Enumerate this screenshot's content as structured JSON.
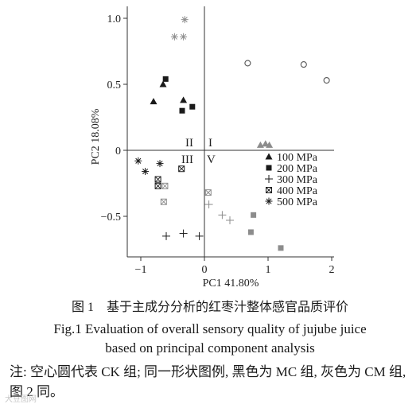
{
  "chart_data": {
    "type": "scatter",
    "xlabel": "PC1 41.80%",
    "ylabel": "PC2 18.08%",
    "xlim": [
      -1.2,
      2.05
    ],
    "ylim": [
      -0.82,
      1.06
    ],
    "xticks": [
      -1,
      0,
      1,
      2
    ],
    "yticks": [
      -0.5,
      0,
      0.5,
      1.0
    ],
    "ytick_labels": [
      "-0.5",
      "0",
      "0.5",
      "1.0"
    ],
    "grid": false,
    "reference_lines": {
      "x": 0,
      "y": 0
    },
    "quadrant_labels": [
      {
        "text": "II",
        "position": "upper-left"
      },
      {
        "text": "I",
        "position": "upper-right"
      },
      {
        "text": "III",
        "position": "lower-left"
      },
      {
        "text": "V",
        "position": "lower-right"
      }
    ],
    "colors": {
      "MC": "#1a1a1a",
      "CM": "#8c8c8c",
      "CK": "#555555"
    },
    "legend": {
      "placement": "right-middle",
      "entries": [
        {
          "label": "100 MPa",
          "marker": "triangle"
        },
        {
          "label": "200 MPa",
          "marker": "square"
        },
        {
          "label": "300 MPa",
          "marker": "plus"
        },
        {
          "label": "400 MPa",
          "marker": "boxed-x"
        },
        {
          "label": "500 MPa",
          "marker": "asterisk"
        }
      ]
    },
    "series": [
      {
        "marker": "circle-open",
        "group": "CK",
        "points": [
          [
            0.68,
            0.66
          ],
          [
            1.56,
            0.65
          ],
          [
            1.92,
            0.53
          ]
        ]
      },
      {
        "marker": "triangle",
        "group": "MC",
        "points": [
          [
            -0.8,
            0.37
          ],
          [
            -0.65,
            0.5
          ],
          [
            -0.33,
            0.38
          ]
        ]
      },
      {
        "marker": "square",
        "group": "MC",
        "points": [
          [
            -0.61,
            0.54
          ],
          [
            -0.35,
            0.3
          ],
          [
            -0.19,
            0.33
          ]
        ]
      },
      {
        "marker": "asterisk",
        "group": "MC",
        "points": [
          [
            -1.04,
            -0.08
          ],
          [
            -0.93,
            -0.16
          ],
          [
            -0.7,
            -0.1
          ]
        ]
      },
      {
        "marker": "boxed-x",
        "group": "MC",
        "points": [
          [
            -0.73,
            -0.22
          ],
          [
            -0.73,
            -0.27
          ],
          [
            -0.36,
            -0.14
          ]
        ]
      },
      {
        "marker": "plus",
        "group": "MC",
        "points": [
          [
            -0.6,
            -0.65
          ],
          [
            -0.33,
            -0.63
          ],
          [
            -0.08,
            -0.65
          ]
        ]
      },
      {
        "marker": "asterisk",
        "group": "CM",
        "points": [
          [
            -0.31,
            0.99
          ],
          [
            -0.47,
            0.86
          ],
          [
            -0.33,
            0.86
          ]
        ]
      },
      {
        "marker": "triangle",
        "group": "CM",
        "points": [
          [
            0.88,
            0.04
          ],
          [
            0.96,
            0.05
          ],
          [
            1.02,
            0.04
          ]
        ]
      },
      {
        "marker": "boxed-x",
        "group": "CM",
        "points": [
          [
            -0.62,
            -0.27
          ],
          [
            -0.64,
            -0.39
          ],
          [
            0.06,
            -0.32
          ]
        ]
      },
      {
        "marker": "plus",
        "group": "CM",
        "points": [
          [
            0.07,
            -0.41
          ],
          [
            0.28,
            -0.49
          ],
          [
            0.4,
            -0.53
          ]
        ]
      },
      {
        "marker": "square",
        "group": "CM",
        "points": [
          [
            0.77,
            -0.49
          ],
          [
            0.73,
            -0.62
          ],
          [
            1.2,
            -0.74
          ]
        ]
      }
    ]
  },
  "caption": {
    "zh": "图 1　基于主成分分析的红枣汁整体感官品质评价",
    "en_line1": "Fig.1    Evaluation of overall sensory quality of jujube juice",
    "en_line2": "based on principal component analysis"
  },
  "note": "注: 空心圆代表 CK 组; 同一形状图例, 黑色为 MC 组, 灰色为 CM 组, 图 2 同。",
  "watermark": "大豆图网"
}
